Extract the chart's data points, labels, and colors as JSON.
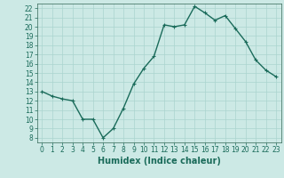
{
  "x": [
    0,
    1,
    2,
    3,
    4,
    5,
    6,
    7,
    8,
    9,
    10,
    11,
    12,
    13,
    14,
    15,
    16,
    17,
    18,
    19,
    20,
    21,
    22,
    23
  ],
  "y": [
    13,
    12.5,
    12.2,
    12,
    10,
    10,
    8,
    9,
    11.2,
    13.8,
    15.5,
    16.8,
    20.2,
    20,
    20.2,
    22.2,
    21.5,
    20.7,
    21.2,
    19.8,
    18.4,
    16.4,
    15.3,
    14.6
  ],
  "line_color": "#1a6b5a",
  "marker": "+",
  "marker_size": 3,
  "bg_color": "#cce9e5",
  "grid_color": "#aad4cf",
  "xlabel": "Humidex (Indice chaleur)",
  "xlim": [
    -0.5,
    23.5
  ],
  "ylim": [
    7.5,
    22.5
  ],
  "yticks": [
    8,
    9,
    10,
    11,
    12,
    13,
    14,
    15,
    16,
    17,
    18,
    19,
    20,
    21,
    22
  ],
  "xticks": [
    0,
    1,
    2,
    3,
    4,
    5,
    6,
    7,
    8,
    9,
    10,
    11,
    12,
    13,
    14,
    15,
    16,
    17,
    18,
    19,
    20,
    21,
    22,
    23
  ],
  "tick_fontsize": 5.5,
  "xlabel_fontsize": 7,
  "linewidth": 1.0,
  "spine_color": "#336655"
}
